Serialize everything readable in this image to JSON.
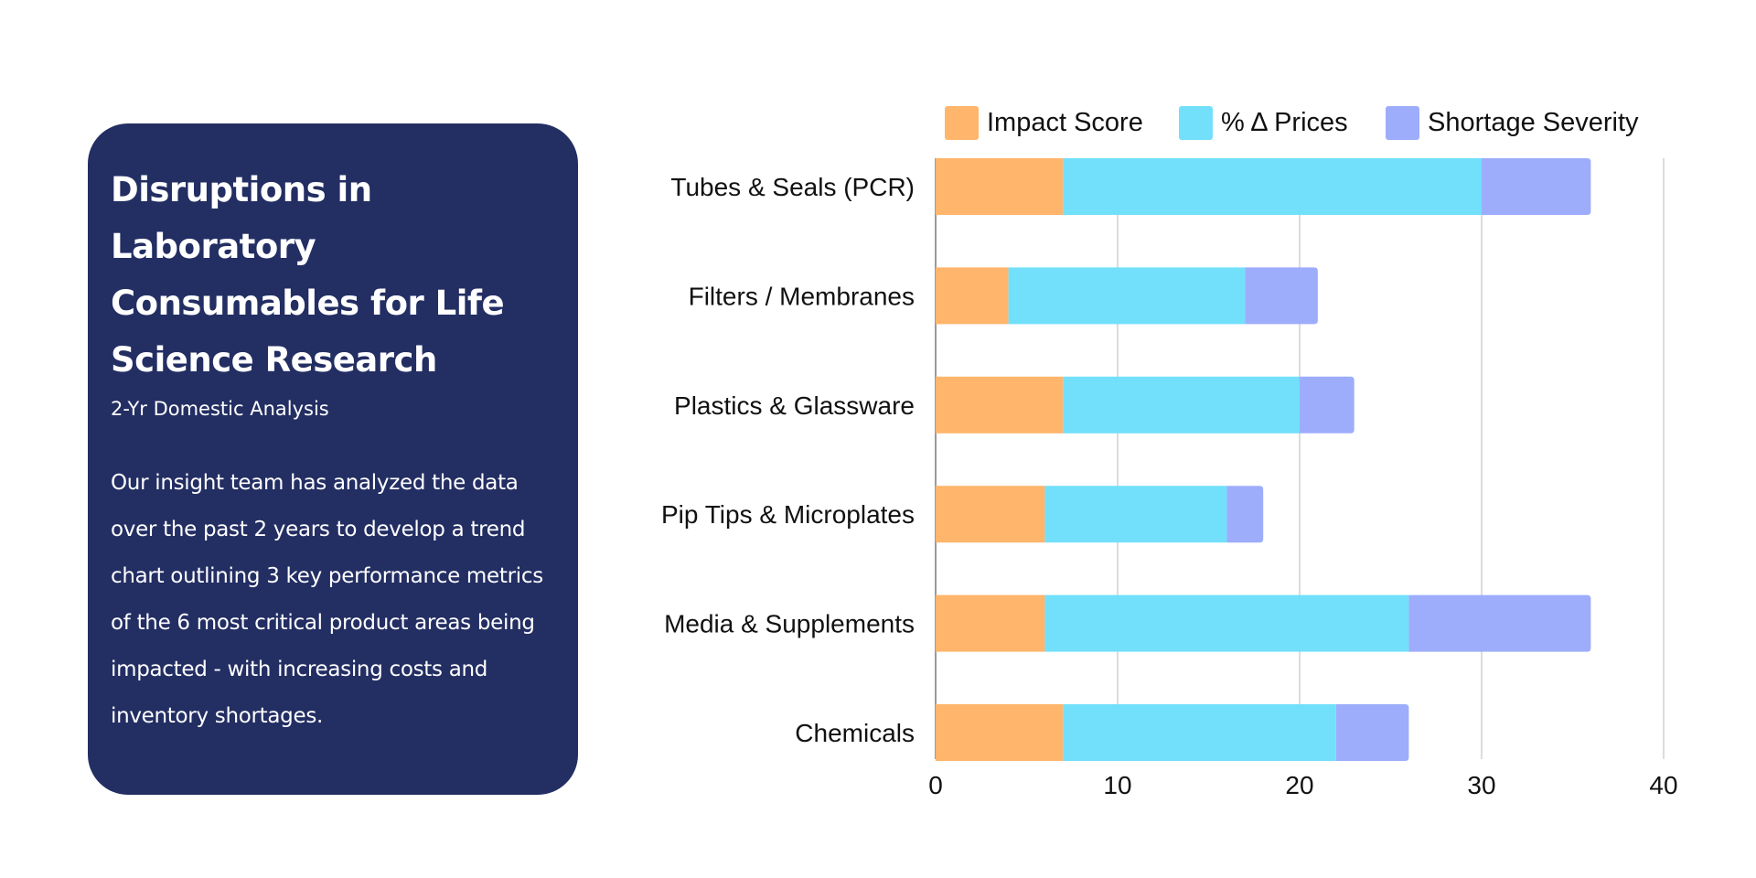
{
  "card": {
    "title": "Disruptions in Laboratory Consumables for Life Science Research",
    "subtitle": "2-Yr Domestic Analysis",
    "body": "Our insight team has analyzed the data over the past 2 years to develop a trend chart outlining 3 key performance metrics of the 6 most critical product areas being impacted - with increasing costs and inventory shortages."
  },
  "colors": {
    "card_bg": "#232e63",
    "impact": "#ffb56b",
    "price": "#72e0fb",
    "shortage": "#9dadfb"
  },
  "chart_data": {
    "type": "bar",
    "orientation": "horizontal",
    "stacked": true,
    "categories": [
      "Tubes & Seals (PCR)",
      "Filters / Membranes",
      "Plastics & Glassware",
      "Pip Tips & Microplates",
      "Media & Supplements",
      "Chemicals"
    ],
    "series": [
      {
        "name": "Impact Score",
        "color": "#ffb56b",
        "values": [
          7,
          4,
          7,
          6,
          6,
          7
        ]
      },
      {
        "name": "% Δ Prices",
        "color": "#72e0fb",
        "values": [
          23,
          13,
          13,
          10,
          20,
          15
        ]
      },
      {
        "name": "Shortage Severity",
        "color": "#9dadfb",
        "values": [
          6,
          4,
          3,
          2,
          10,
          4
        ]
      }
    ],
    "xlim": [
      0,
      40
    ],
    "xticks": [
      0,
      10,
      20,
      30,
      40
    ],
    "grid": true,
    "legend_position": "top"
  }
}
